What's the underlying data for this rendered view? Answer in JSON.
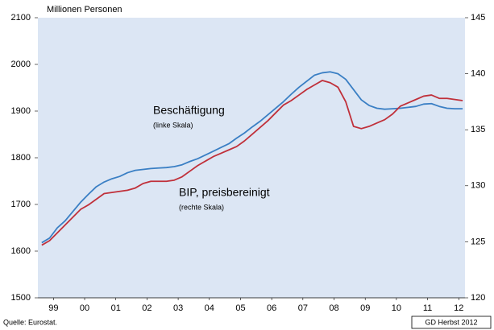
{
  "chart_data": {
    "type": "line",
    "y_label": "Millionen Personen",
    "annotations": [
      {
        "text": "Beschäftigung",
        "color": "#2f7ac0"
      },
      {
        "text": "(linke Skala)"
      },
      {
        "text": "BIP, preisbereinigt",
        "color": "#c0303a"
      },
      {
        "text": "(rechte Skala)"
      }
    ],
    "source": "Quelle: Eurostat.",
    "note": "GD Herbst 2012",
    "x": [
      1999.125,
      1999.375,
      1999.625,
      1999.875,
      2000.125,
      2000.375,
      2000.625,
      2000.875,
      2001.125,
      2001.375,
      2001.625,
      2001.875,
      2002.125,
      2002.375,
      2002.625,
      2002.875,
      2003.125,
      2003.375,
      2003.625,
      2003.875,
      2004.125,
      2004.375,
      2004.625,
      2004.875,
      2005.125,
      2005.375,
      2005.625,
      2005.875,
      2006.125,
      2006.375,
      2006.625,
      2006.875,
      2007.125,
      2007.375,
      2007.625,
      2007.875,
      2008.125,
      2008.375,
      2008.625,
      2008.875,
      2009.125,
      2009.375,
      2009.625,
      2009.875,
      2010.125,
      2010.375,
      2010.625,
      2010.875,
      2011.125,
      2011.375,
      2011.625,
      2011.875,
      2012.125,
      2012.375,
      2012.625
    ],
    "xlim": [
      1999,
      2012.7
    ],
    "xticks": [
      {
        "value": 1999.5,
        "label": "99"
      },
      {
        "value": 2000.5,
        "label": "00"
      },
      {
        "value": 2001.5,
        "label": "01"
      },
      {
        "value": 2002.5,
        "label": "02"
      },
      {
        "value": 2003.5,
        "label": "03"
      },
      {
        "value": 2004.5,
        "label": "04"
      },
      {
        "value": 2005.5,
        "label": "05"
      },
      {
        "value": 2006.5,
        "label": "06"
      },
      {
        "value": 2007.5,
        "label": "07"
      },
      {
        "value": 2008.5,
        "label": "08"
      },
      {
        "value": 2009.5,
        "label": "09"
      },
      {
        "value": 2010.5,
        "label": "10"
      },
      {
        "value": 2011.5,
        "label": "11"
      },
      {
        "value": 2012.5,
        "label": "12"
      }
    ],
    "ylim": [
      1500,
      2100
    ],
    "yticks": [
      1500,
      1600,
      1700,
      1800,
      1900,
      2000,
      2100
    ],
    "y2lim": [
      120,
      145
    ],
    "y2ticks": [
      120,
      125,
      130,
      135,
      140,
      145
    ],
    "series": [
      {
        "name": "Beschäftigung",
        "color": "#3a7fc4",
        "axis": "y",
        "values": [
          1618,
          1628,
          1650,
          1665,
          1685,
          1705,
          1722,
          1738,
          1748,
          1755,
          1760,
          1768,
          1773,
          1775,
          1777,
          1778,
          1779,
          1781,
          1785,
          1792,
          1798,
          1806,
          1814,
          1822,
          1830,
          1842,
          1853,
          1866,
          1878,
          1892,
          1906,
          1920,
          1936,
          1951,
          1964,
          1977,
          1982,
          1984,
          1980,
          1968,
          1946,
          1924,
          1912,
          1906,
          1904,
          1905,
          1906,
          1908,
          1910,
          1915,
          1916,
          1910,
          1906,
          1905,
          1905
        ]
      },
      {
        "name": "BIP, preisbereinigt",
        "color": "#c0303a",
        "axis": "y2",
        "values": [
          124.7,
          125.1,
          125.8,
          126.5,
          127.2,
          127.9,
          128.3,
          128.8,
          129.3,
          129.4,
          129.5,
          129.6,
          129.8,
          130.2,
          130.4,
          130.4,
          130.4,
          130.5,
          130.8,
          131.3,
          131.8,
          132.2,
          132.6,
          132.9,
          133.2,
          133.5,
          134.0,
          134.6,
          135.2,
          135.8,
          136.5,
          137.2,
          137.6,
          138.1,
          138.6,
          139.0,
          139.4,
          139.2,
          138.8,
          137.5,
          135.3,
          135.1,
          135.3,
          135.6,
          135.9,
          136.4,
          137.1,
          137.4,
          137.7,
          138.0,
          138.1,
          137.8,
          137.8,
          137.7,
          137.6
        ]
      }
    ]
  }
}
